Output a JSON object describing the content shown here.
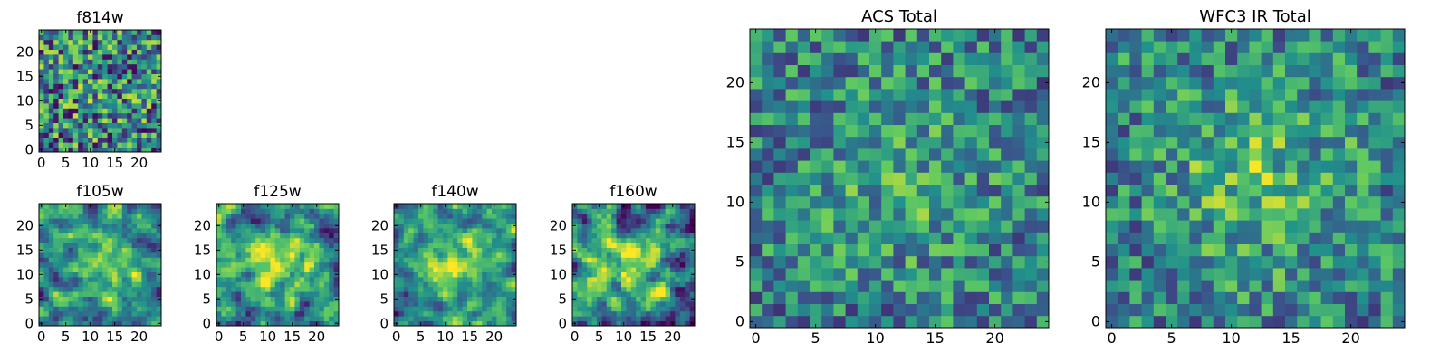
{
  "chart_data": [
    {
      "type": "heatmap",
      "title": "f814w",
      "grid_size": 25,
      "xlim": [
        0,
        24
      ],
      "ylim": [
        0,
        24
      ],
      "xticks": [
        0,
        5,
        10,
        15,
        20
      ],
      "yticks": [
        0,
        5,
        10,
        15,
        20
      ],
      "seed": 11,
      "contrast": 0.9,
      "center_boost": 0.05,
      "smooth": 0
    },
    {
      "type": "heatmap",
      "title": "f105w",
      "grid_size": 25,
      "xlim": [
        0,
        24
      ],
      "ylim": [
        0,
        24
      ],
      "xticks": [
        0,
        5,
        10,
        15,
        20
      ],
      "yticks": [
        0,
        5,
        10,
        15,
        20
      ],
      "seed": 23,
      "contrast": 0.75,
      "center_boost": 0.35,
      "smooth": 1
    },
    {
      "type": "heatmap",
      "title": "f125w",
      "grid_size": 25,
      "xlim": [
        0,
        24
      ],
      "ylim": [
        0,
        24
      ],
      "xticks": [
        0,
        5,
        10,
        15,
        20
      ],
      "yticks": [
        0,
        5,
        10,
        15,
        20
      ],
      "seed": 37,
      "contrast": 0.8,
      "center_boost": 0.45,
      "smooth": 1
    },
    {
      "type": "heatmap",
      "title": "f140w",
      "grid_size": 25,
      "xlim": [
        0,
        24
      ],
      "ylim": [
        0,
        24
      ],
      "xticks": [
        0,
        5,
        10,
        15,
        20
      ],
      "yticks": [
        0,
        5,
        10,
        15,
        20
      ],
      "seed": 41,
      "contrast": 0.7,
      "center_boost": 0.45,
      "smooth": 1
    },
    {
      "type": "heatmap",
      "title": "f160w",
      "grid_size": 25,
      "xlim": [
        0,
        24
      ],
      "ylim": [
        0,
        24
      ],
      "xticks": [
        0,
        5,
        10,
        15,
        20
      ],
      "yticks": [
        0,
        5,
        10,
        15,
        20
      ],
      "seed": 53,
      "contrast": 0.85,
      "center_boost": 0.35,
      "smooth": 1
    },
    {
      "type": "heatmap",
      "title": "ACS Total",
      "grid_size": 25,
      "xlim": [
        0,
        24
      ],
      "ylim": [
        0,
        24
      ],
      "xticks": [
        0,
        5,
        10,
        15,
        20
      ],
      "yticks": [
        0,
        5,
        10,
        15,
        20
      ],
      "seed": 67,
      "contrast": 0.6,
      "center_boost": 0.15,
      "smooth": 0
    },
    {
      "type": "heatmap",
      "title": "WFC3 IR Total",
      "grid_size": 25,
      "xlim": [
        0,
        24
      ],
      "ylim": [
        0,
        24
      ],
      "xticks": [
        0,
        5,
        10,
        15,
        20
      ],
      "yticks": [
        0,
        5,
        10,
        15,
        20
      ],
      "seed": 79,
      "contrast": 0.6,
      "center_boost": 0.25,
      "smooth": 0
    }
  ],
  "colormap": {
    "name": "viridis",
    "stops": [
      "#440154",
      "#3b528b",
      "#21918c",
      "#5ec962",
      "#fde725"
    ]
  }
}
